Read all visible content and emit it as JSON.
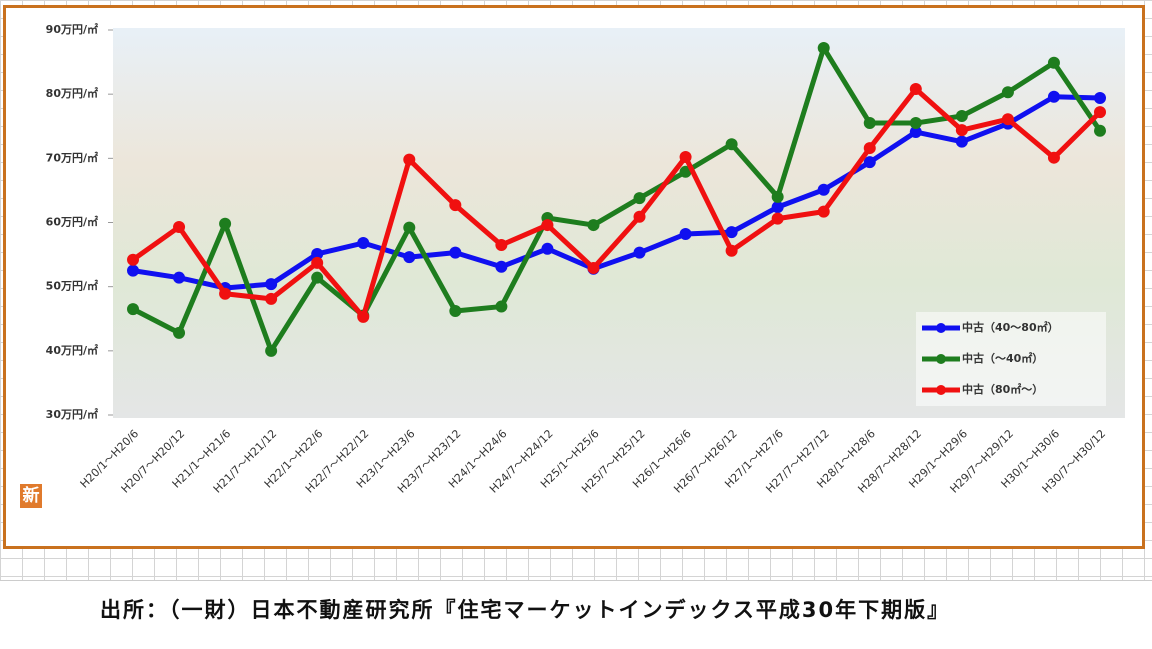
{
  "chart_data": {
    "type": "line",
    "categories": [
      "H20/1～H20/6",
      "H20/7～H20/12",
      "H21/1～H21/6",
      "H21/7～H21/12",
      "H22/1～H22/6",
      "H22/7～H22/12",
      "H23/1～H23/6",
      "H23/7～H23/12",
      "H24/1～H24/6",
      "H24/7～H24/12",
      "H25/1～H25/6",
      "H25/7～H25/12",
      "H26/1～H26/6",
      "H26/7～H26/12",
      "H27/1～H27/6",
      "H27/7～H27/12",
      "H28/1～H28/6",
      "H28/7～H28/12",
      "H29/1～H29/6",
      "H29/7～H29/12",
      "H30/1～H30/6",
      "H30/7～H30/12"
    ],
    "series": [
      {
        "name": "中古（40～80㎡）",
        "color": "#1010f0",
        "values": [
          52.5,
          51.4,
          49.8,
          50.4,
          55.1,
          56.8,
          54.6,
          55.3,
          53.1,
          55.9,
          52.8,
          55.3,
          58.2,
          58.5,
          62.4,
          65.1,
          69.4,
          74.1,
          72.6,
          75.4,
          79.6,
          79.4
        ]
      },
      {
        "name": "中古（～40㎡）",
        "color": "#1e7d1e",
        "values": [
          46.5,
          42.8,
          59.8,
          40.0,
          51.4,
          45.5,
          59.2,
          46.2,
          46.9,
          60.7,
          59.6,
          63.8,
          67.9,
          72.2,
          64.0,
          87.2,
          75.5,
          75.5,
          76.6,
          80.3,
          84.9,
          74.3
        ]
      },
      {
        "name": "中古（80㎡～）",
        "color": "#f01010",
        "values": [
          54.2,
          59.3,
          48.9,
          48.1,
          53.7,
          45.3,
          69.8,
          62.7,
          56.5,
          59.6,
          52.9,
          60.9,
          70.2,
          55.6,
          60.6,
          61.7,
          71.6,
          80.8,
          74.4,
          76.1,
          70.1,
          77.2
        ]
      }
    ],
    "ylim": [
      30,
      90
    ],
    "yticks": [
      {
        "value": 30,
        "label": "30万円/㎡"
      },
      {
        "value": 40,
        "label": "40万円/㎡"
      },
      {
        "value": 50,
        "label": "50万円/㎡"
      },
      {
        "value": 60,
        "label": "60万円/㎡"
      },
      {
        "value": 70,
        "label": "70万円/㎡"
      },
      {
        "value": 80,
        "label": "80万円/㎡"
      },
      {
        "value": 90,
        "label": "90万円/㎡"
      }
    ],
    "legend": "lower right"
  },
  "logo": "新",
  "source": "出所：（一財）日本不動産研究所『住宅マーケットインデックス平成30年下期版』"
}
